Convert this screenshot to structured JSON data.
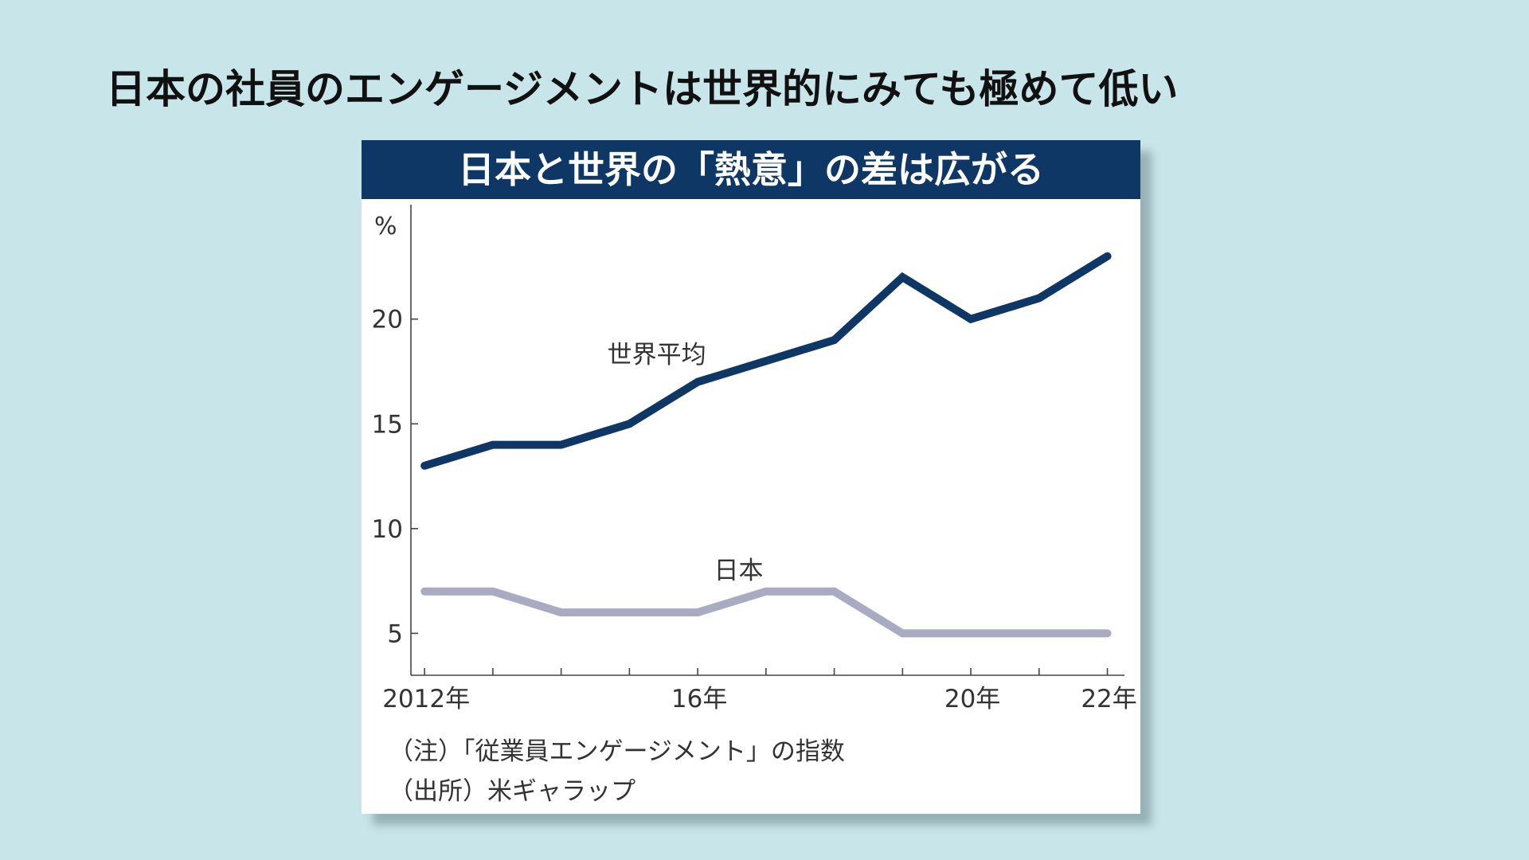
{
  "slide": {
    "title": "日本の社員のエンゲージメントは世界的にみても極めて低い"
  },
  "card": {
    "header": "日本と世界の「熱意」の差は広がる",
    "note": "（注）「従業員エンゲージメント」の指数",
    "source": "（出所）米ギャラップ"
  },
  "colors": {
    "background": "#c8e6ea",
    "header_bg": "#0e3766",
    "world_line": "#0e3766",
    "japan_line": "#a9abc2"
  },
  "chart_data": {
    "type": "line",
    "title": "日本と世界の「熱意」の差は広がる",
    "unit_label": "%",
    "x": [
      2012,
      2013,
      2014,
      2015,
      2016,
      2017,
      2018,
      2019,
      2020,
      2021,
      2022
    ],
    "x_tick_labels": [
      {
        "x": 2012,
        "label": "2012年"
      },
      {
        "x": 2016,
        "label": "16年"
      },
      {
        "x": 2020,
        "label": "20年"
      },
      {
        "x": 2022,
        "label": "22年"
      }
    ],
    "y_ticks": [
      5,
      10,
      15,
      20
    ],
    "ylim": [
      3,
      25.5
    ],
    "xlim": [
      2011.8,
      2022.25
    ],
    "series": [
      {
        "name": "世界平均",
        "color": "#0e3766",
        "values": [
          13,
          14,
          14,
          15,
          17,
          18,
          19,
          22,
          20,
          21,
          23
        ]
      },
      {
        "name": "日本",
        "color": "#a9abc2",
        "values": [
          7,
          7,
          6,
          6,
          6,
          7,
          7,
          5,
          5,
          5,
          5
        ]
      }
    ]
  }
}
